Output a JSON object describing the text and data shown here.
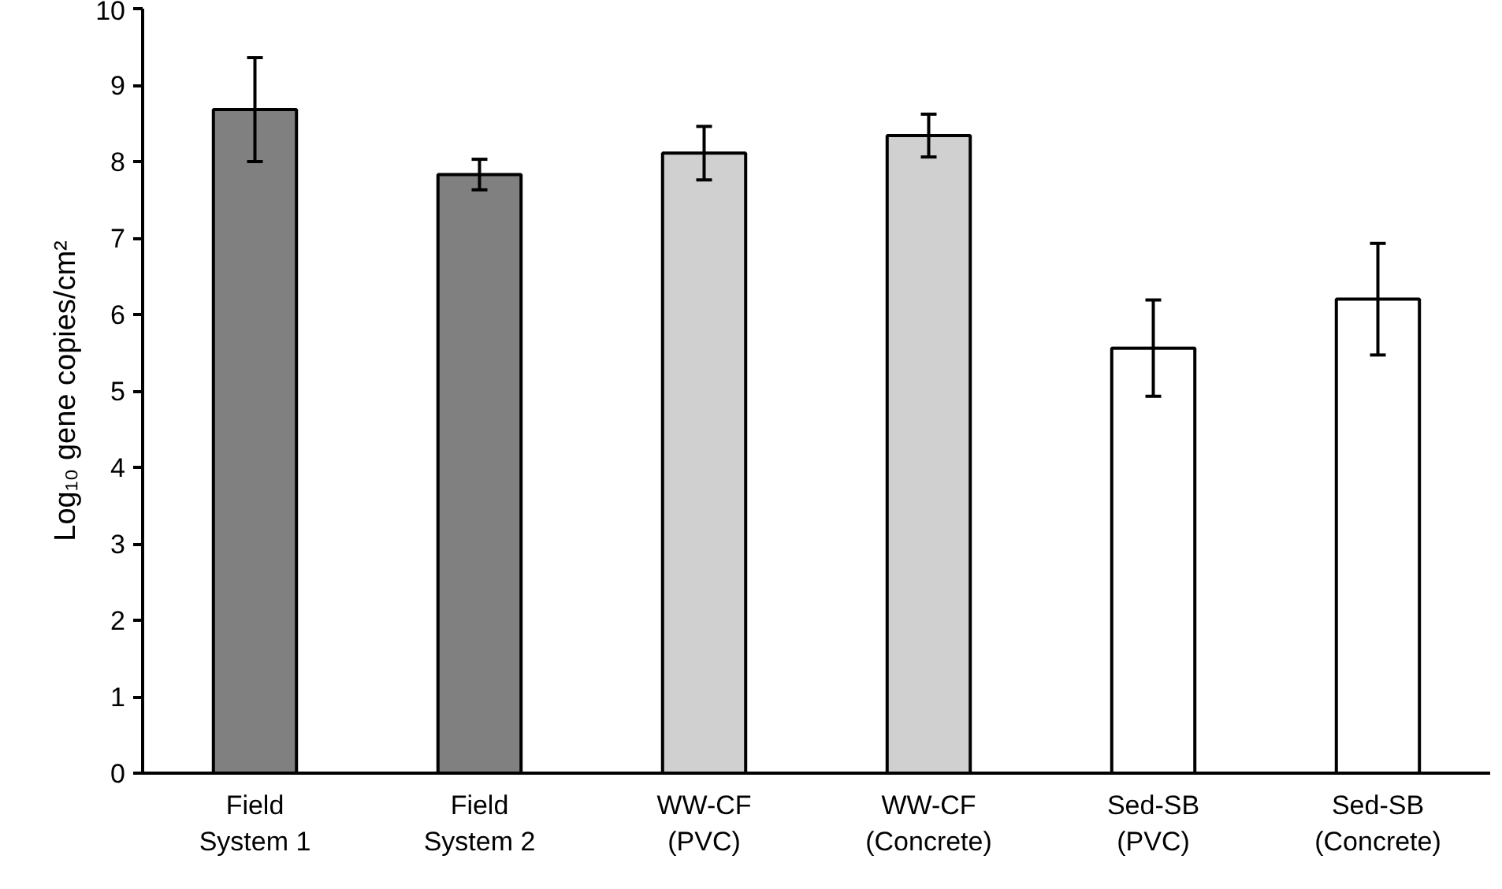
{
  "chart_data": {
    "type": "bar",
    "ylabel": "Log₁₀ gene copies/cm²",
    "categories": [
      "Field\nSystem 1",
      "Field\nSystem 2",
      "WW-CF\n(PVC)",
      "WW-CF\n(Concrete)",
      "Sed-SB\n(PVC)",
      "Sed-SB\n(Concrete)"
    ],
    "values": [
      8.68,
      7.83,
      8.11,
      8.34,
      5.56,
      6.2
    ],
    "errors": [
      0.68,
      0.2,
      0.35,
      0.28,
      0.63,
      0.73
    ],
    "colors": [
      "#808080",
      "#808080",
      "#d0d0d0",
      "#d0d0d0",
      "#ffffff",
      "#ffffff"
    ],
    "ylim": [
      0,
      10
    ],
    "yticks": [
      0,
      1,
      2,
      3,
      4,
      5,
      6,
      7,
      8,
      9,
      10
    ],
    "grid": false
  }
}
